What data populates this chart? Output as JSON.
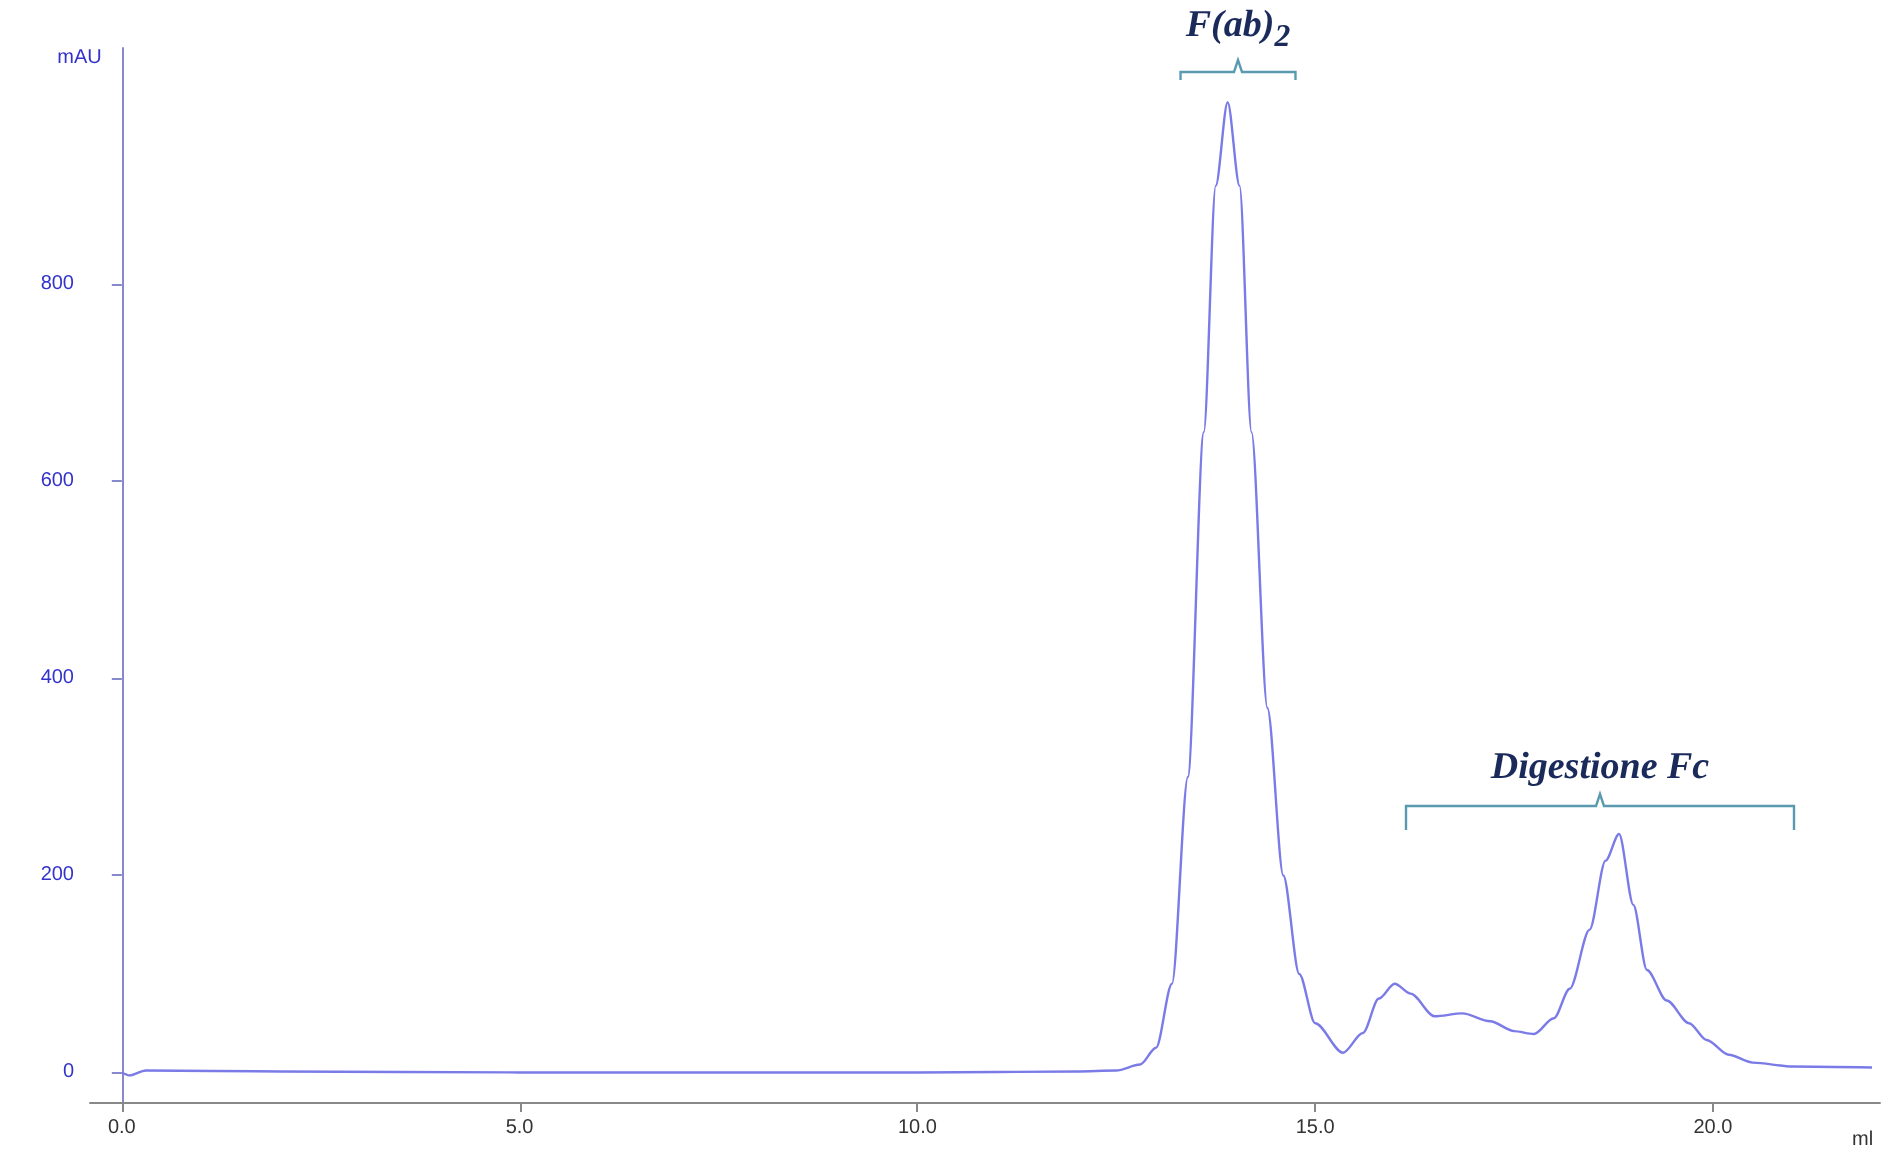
{
  "chart_data": {
    "type": "line",
    "xlabel": "ml",
    "ylabel": "mAU",
    "x": [
      0,
      0.1,
      0.3,
      2,
      5,
      10,
      12,
      12.5,
      12.8,
      13.0,
      13.2,
      13.4,
      13.6,
      13.75,
      13.9,
      14.05,
      14.2,
      14.4,
      14.6,
      14.8,
      15.0,
      15.35,
      15.6,
      15.8,
      16.0,
      16.2,
      16.5,
      16.85,
      17.2,
      17.5,
      17.75,
      18.0,
      18.2,
      18.45,
      18.65,
      18.82,
      19.0,
      19.17,
      19.42,
      19.7,
      19.92,
      20.2,
      20.5,
      21.0,
      22.0
    ],
    "series": [
      {
        "color": "#7b7be8",
        "values": [
          0,
          -3,
          2,
          1,
          0,
          0,
          1,
          2,
          8,
          25,
          90,
          300,
          650,
          900,
          985,
          900,
          650,
          370,
          200,
          100,
          50,
          20,
          40,
          75,
          90,
          80,
          57,
          60,
          52,
          42,
          39,
          55,
          85,
          145,
          215,
          242,
          170,
          104,
          73,
          50,
          33,
          18,
          10,
          6,
          5
        ]
      }
    ],
    "xlim": [
      -0.4,
      22.1
    ],
    "ylim": [
      -30,
      1040
    ],
    "xticks": [
      {
        "value": 0,
        "label": "0.0"
      },
      {
        "value": 5,
        "label": "5.0"
      },
      {
        "value": 10,
        "label": "10.0"
      },
      {
        "value": 15,
        "label": "15.0"
      },
      {
        "value": 20,
        "label": "20.0"
      }
    ],
    "yticks": [
      0,
      200,
      400,
      600,
      800
    ],
    "grid": false,
    "marker": "none",
    "line_style": "solid",
    "annotations": [
      "F(ab)$_{2}$",
      "Digestione Fc"
    ]
  }
}
